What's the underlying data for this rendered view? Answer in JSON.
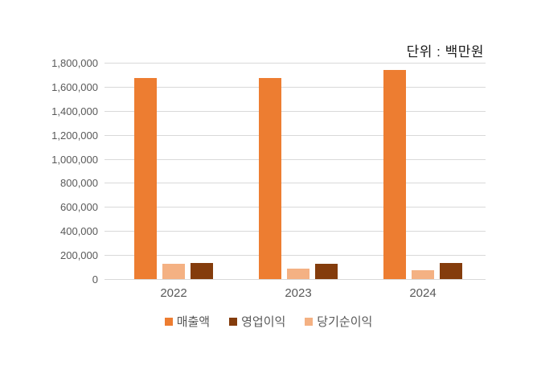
{
  "chart_data": {
    "type": "bar",
    "title": "단위 : 백만원",
    "categories": [
      "2022",
      "2023",
      "2024"
    ],
    "series": [
      {
        "key": "revenue",
        "name": "매출액",
        "color": "#ED7D31",
        "values": [
          1670000,
          1675000,
          1740000
        ]
      },
      {
        "key": "net_income",
        "name": "당기순이익",
        "color": "#F4B183",
        "values": [
          125000,
          85000,
          75000
        ]
      },
      {
        "key": "operating_profit",
        "name": "영업이익",
        "color": "#843C0C",
        "values": [
          135000,
          130000,
          135000
        ]
      }
    ],
    "legend": [
      {
        "key": "revenue",
        "label": "매출액",
        "color": "#ED7D31"
      },
      {
        "key": "operating_profit",
        "label": "영업이익",
        "color": "#843C0C"
      },
      {
        "key": "net_income",
        "label": "당기순이익",
        "color": "#F4B183"
      }
    ],
    "xlabel": "",
    "ylabel": "",
    "ylim": [
      0,
      1800000
    ],
    "ytick_step": 200000,
    "ytick_labels": [
      "0",
      "200,000",
      "400,000",
      "600,000",
      "800,000",
      "1,000,000",
      "1,200,000",
      "1,400,000",
      "1,600,000",
      "1,800,000"
    ],
    "grid": true,
    "legend_position": "bottom"
  },
  "colors": {
    "background": "#FFFFFF",
    "gridline": "#D9D9D9",
    "axis_text": "#595959",
    "unit_text": "#1A1A1A"
  }
}
